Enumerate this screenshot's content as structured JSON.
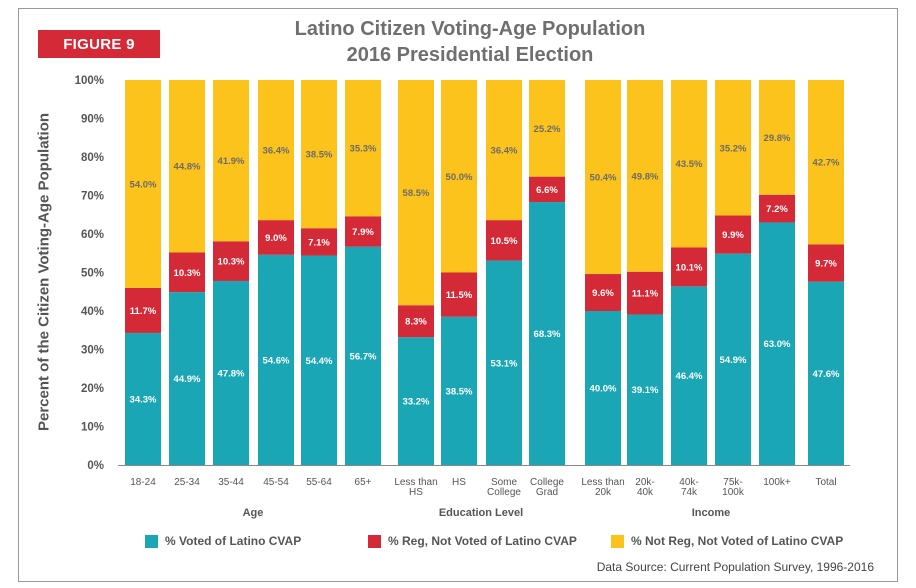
{
  "figure_label": "FIGURE 9",
  "chart_data": {
    "type": "bar",
    "stacked": true,
    "title": [
      "Latino Citizen Voting-Age Population",
      "2016 Presidential Election"
    ],
    "ylabel": "Percent of the Citizen Voting-Age Population",
    "ylim": [
      0,
      100
    ],
    "yticks": [
      "0%",
      "10%",
      "20%",
      "30%",
      "40%",
      "50%",
      "60%",
      "70%",
      "80%",
      "90%",
      "100%"
    ],
    "grid": false,
    "legend_position": "bottom",
    "groups": [
      {
        "label": "Age",
        "categories": [
          "18-24",
          "25-34",
          "35-44",
          "45-54",
          "55-64",
          "65+"
        ]
      },
      {
        "label": "Education Level",
        "categories": [
          "Less than HS",
          "HS",
          "Some College",
          "College Grad"
        ]
      },
      {
        "label": "Income",
        "categories": [
          "Less than 20k",
          "20k-40k",
          "40k-74k",
          "75k-100k",
          "100k+"
        ]
      },
      {
        "label": "",
        "categories": [
          "Total"
        ]
      }
    ],
    "category_tick_lines": [
      [
        "18-24"
      ],
      [
        "25-34"
      ],
      [
        "35-44"
      ],
      [
        "45-54"
      ],
      [
        "55-64"
      ],
      [
        "65+"
      ],
      [
        "Less than",
        "HS"
      ],
      [
        "HS"
      ],
      [
        "Some",
        "College"
      ],
      [
        "College",
        "Grad"
      ],
      [
        "Less than",
        "20k"
      ],
      [
        "20k-",
        "40k"
      ],
      [
        "40k-",
        "74k"
      ],
      [
        "75k-",
        "100k"
      ],
      [
        "100k+"
      ],
      [
        "Total"
      ]
    ],
    "series": [
      {
        "name": "% Voted of Latino CVAP",
        "color": "#1aa6b5",
        "values": [
          34.3,
          44.9,
          47.8,
          54.6,
          54.4,
          56.7,
          33.2,
          38.5,
          53.1,
          68.3,
          40.0,
          39.1,
          46.4,
          54.9,
          63.0,
          47.6
        ],
        "labels": [
          "34.3%",
          "44.9%",
          "47.8%",
          "54.6%",
          "54.4%",
          "56.7%",
          "33.2%",
          "38.5%",
          "53.1%",
          "68.3%",
          "40.0%",
          "39.1%",
          "46.4%",
          "54.9%",
          "63.0%",
          "47.6%"
        ]
      },
      {
        "name": "% Reg, Not Voted of Latino CVAP",
        "color": "#d42a37",
        "values": [
          11.7,
          10.3,
          10.3,
          9.0,
          7.1,
          7.9,
          8.3,
          11.5,
          10.5,
          6.6,
          9.6,
          11.1,
          10.1,
          9.9,
          7.2,
          9.7
        ],
        "labels": [
          "11.7%",
          "10.3%",
          "10.3%",
          "9.0%",
          "7.1%",
          "7.9%",
          "8.3%",
          "11.5%",
          "10.5%",
          "6.6%",
          "9.6%",
          "11.1%",
          "10.1%",
          "9.9%",
          "7.2%",
          "9.7%"
        ]
      },
      {
        "name": "% Not Reg, Not Voted of Latino CVAP",
        "color": "#fbc31c",
        "values": [
          54.0,
          44.8,
          41.9,
          36.4,
          38.5,
          35.3,
          58.5,
          50.0,
          36.4,
          25.2,
          50.4,
          49.8,
          43.5,
          35.2,
          29.8,
          42.7
        ],
        "labels": [
          "54.0%",
          "44.8%",
          "41.9%",
          "36.4%",
          "38.5%",
          "35.3%",
          "58.5%",
          "50.0%",
          "36.4%",
          "25.2%",
          "50.4%",
          "49.8%",
          "43.5%",
          "35.2%",
          "29.8%",
          "42.7%"
        ]
      }
    ]
  },
  "source": "Data Source: Current Population Survey, 1996-2016"
}
